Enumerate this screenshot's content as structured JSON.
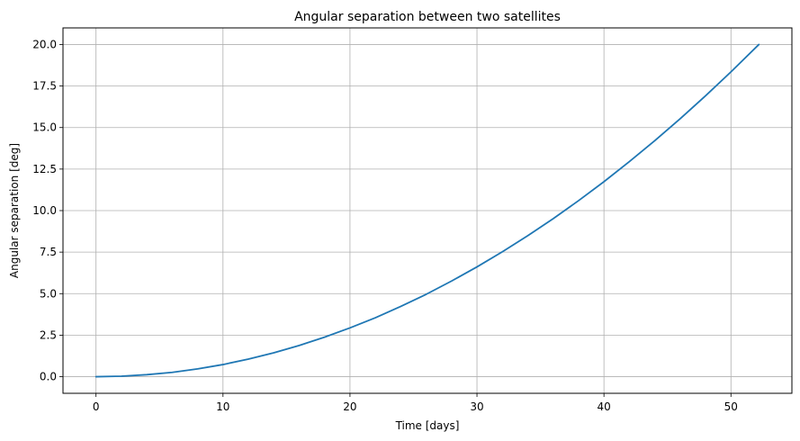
{
  "chart_data": {
    "type": "line",
    "title": "Angular separation between two satellites",
    "xlabel": "Time [days]",
    "ylabel": "Angular separation [deg]",
    "xlim": [
      -2.6,
      54.8
    ],
    "ylim": [
      -1.0,
      21.0
    ],
    "xticks": [
      0,
      10,
      20,
      30,
      40,
      50
    ],
    "xtick_labels": [
      "0",
      "10",
      "20",
      "30",
      "40",
      "50"
    ],
    "yticks": [
      0.0,
      2.5,
      5.0,
      7.5,
      10.0,
      12.5,
      15.0,
      17.5,
      20.0
    ],
    "ytick_labels": [
      "0.0",
      "2.5",
      "5.0",
      "7.5",
      "10.0",
      "12.5",
      "15.0",
      "17.5",
      "20.0"
    ],
    "grid": true,
    "series": [
      {
        "color": "#1f77b4",
        "x": [
          0,
          2,
          4,
          6,
          8,
          10,
          12,
          14,
          16,
          18,
          20,
          22,
          24,
          26,
          28,
          30,
          32,
          34,
          36,
          38,
          40,
          42,
          44,
          46,
          48,
          50,
          52.2
        ],
        "y": [
          0.0,
          0.03,
          0.12,
          0.26,
          0.47,
          0.73,
          1.06,
          1.44,
          1.88,
          2.38,
          2.94,
          3.55,
          4.23,
          4.96,
          5.76,
          6.61,
          7.52,
          8.49,
          9.51,
          10.6,
          11.74,
          12.95,
          14.21,
          15.53,
          16.91,
          18.35,
          20.0
        ]
      }
    ]
  }
}
